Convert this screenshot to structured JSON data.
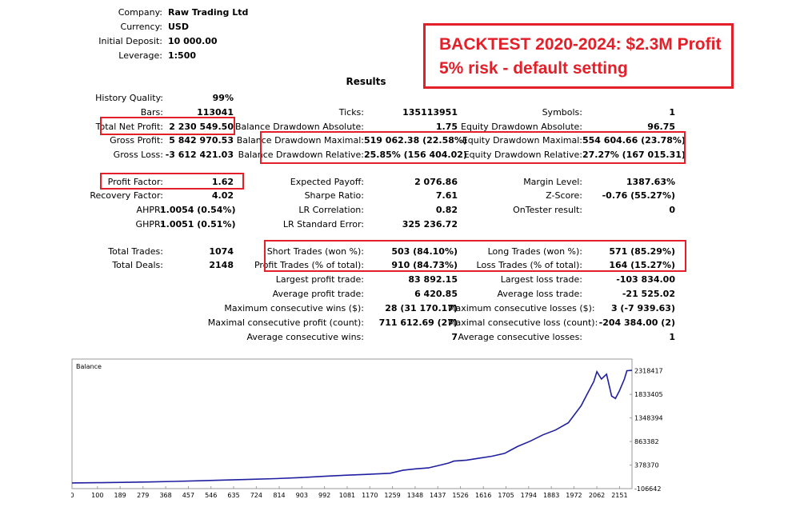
{
  "header": {
    "rows": [
      {
        "label": "Company:",
        "value": "Raw Trading Ltd"
      },
      {
        "label": "Currency:",
        "value": "USD"
      },
      {
        "label": "Initial Deposit:",
        "value": "10 000.00"
      },
      {
        "label": "Leverage:",
        "value": "1:500"
      }
    ]
  },
  "banner": {
    "line1": "BACKTEST 2020-2024: $2.3M Profit",
    "line2": "5% risk - default setting"
  },
  "results_title": "Results",
  "col1": {
    "history_quality": {
      "label": "History Quality:",
      "value": "99%"
    },
    "bars": {
      "label": "Bars:",
      "value": "113041"
    },
    "total_net_profit": {
      "label": "Total Net Profit:",
      "value": "2 230 549.50"
    },
    "gross_profit": {
      "label": "Gross Profit:",
      "value": "5 842 970.53"
    },
    "gross_loss": {
      "label": "Gross Loss:",
      "value": "-3 612 421.03"
    },
    "profit_factor": {
      "label": "Profit Factor:",
      "value": "1.62"
    },
    "recovery_factor": {
      "label": "Recovery Factor:",
      "value": "4.02"
    },
    "ahpr": {
      "label": "AHPR:",
      "value": "1.0054 (0.54%)"
    },
    "ghpr": {
      "label": "GHPR:",
      "value": "1.0051 (0.51%)"
    },
    "total_trades": {
      "label": "Total Trades:",
      "value": "1074"
    },
    "total_deals": {
      "label": "Total Deals:",
      "value": "2148"
    }
  },
  "col2": {
    "ticks": {
      "label": "Ticks:",
      "value": "135113951"
    },
    "bal_dd_abs": {
      "label": "Balance Drawdown Absolute:",
      "value": "1.75"
    },
    "bal_dd_max": {
      "label": "Balance Drawdown Maximal:",
      "value": "519 062.38 (22.58%)"
    },
    "bal_dd_rel": {
      "label": "Balance Drawdown Relative:",
      "value": "25.85% (156 404.02)"
    },
    "expected_payoff": {
      "label": "Expected Payoff:",
      "value": "2 076.86"
    },
    "sharpe": {
      "label": "Sharpe Ratio:",
      "value": "7.61"
    },
    "lr_corr": {
      "label": "LR Correlation:",
      "value": "0.82"
    },
    "lr_std": {
      "label": "LR Standard Error:",
      "value": "325 236.72"
    },
    "short_trades": {
      "label": "Short Trades (won %):",
      "value": "503 (84.10%)"
    },
    "profit_trades": {
      "label": "Profit Trades (% of total):",
      "value": "910 (84.73%)"
    },
    "largest_profit": {
      "label": "Largest profit trade:",
      "value": "83 892.15"
    },
    "avg_profit": {
      "label": "Average profit trade:",
      "value": "6 420.85"
    },
    "max_consec_wins": {
      "label": "Maximum consecutive wins ($):",
      "value": "28 (31 170.17)"
    },
    "maximal_consec_profit": {
      "label": "Maximal consecutive profit (count):",
      "value": "711 612.69 (27)"
    },
    "avg_consec_wins": {
      "label": "Average consecutive wins:",
      "value": "7"
    }
  },
  "col3": {
    "symbols": {
      "label": "Symbols:",
      "value": "1"
    },
    "eq_dd_abs": {
      "label": "Equity Drawdown Absolute:",
      "value": "96.75"
    },
    "eq_dd_max": {
      "label": "Equity Drawdown Maximal:",
      "value": "554 604.66 (23.78%)"
    },
    "eq_dd_rel": {
      "label": "Equity Drawdown Relative:",
      "value": "27.27% (167 015.31)"
    },
    "margin_level": {
      "label": "Margin Level:",
      "value": "1387.63%"
    },
    "z_score": {
      "label": "Z-Score:",
      "value": "-0.76 (55.27%)"
    },
    "ontester": {
      "label": "OnTester result:",
      "value": "0"
    },
    "long_trades": {
      "label": "Long Trades (won %):",
      "value": "571 (85.29%)"
    },
    "loss_trades": {
      "label": "Loss Trades (% of total):",
      "value": "164 (15.27%)"
    },
    "largest_loss": {
      "label": "Largest loss trade:",
      "value": "-103 834.00"
    },
    "avg_loss": {
      "label": "Average loss trade:",
      "value": "-21 525.02"
    },
    "max_consec_losses": {
      "label": "Maximum consecutive losses ($):",
      "value": "3 (-7 939.63)"
    },
    "maximal_consec_loss": {
      "label": "Maximal consecutive loss (count):",
      "value": "-204 384.00 (2)"
    },
    "avg_consec_losses": {
      "label": "Average consecutive losses:",
      "value": "1"
    }
  },
  "colors": {
    "highlight": "#e3202a",
    "series": "#1f1fa0"
  },
  "chart_data": {
    "type": "line",
    "title": "Balance",
    "x_ticks": [
      "0",
      "100",
      "189",
      "279",
      "368",
      "457",
      "546",
      "635",
      "724",
      "814",
      "903",
      "992",
      "1081",
      "1170",
      "1259",
      "1348",
      "1437",
      "1526",
      "1616",
      "1705",
      "1794",
      "1883",
      "1972",
      "2062",
      "2151"
    ],
    "y_ticks": [
      "2318417",
      "1833405",
      "1348394",
      "863382",
      "378370",
      "-106642"
    ],
    "xlim": [
      0,
      2200
    ],
    "ylim": [
      -106642,
      2561000
    ],
    "series": [
      {
        "x": [
          0,
          100,
          200,
          300,
          400,
          500,
          600,
          700,
          800,
          900,
          1000,
          1080,
          1150,
          1250,
          1300,
          1350,
          1400,
          1450,
          1480,
          1500,
          1550,
          1600,
          1650,
          1700,
          1750,
          1800,
          1850,
          1900,
          1950,
          2000,
          2020,
          2050,
          2062,
          2080,
          2100,
          2120,
          2135,
          2150,
          2170,
          2180,
          2200
        ],
        "y": [
          10000,
          15000,
          22000,
          30000,
          42000,
          55000,
          70000,
          85000,
          100000,
          120000,
          150000,
          170000,
          185000,
          210000,
          270000,
          300000,
          320000,
          380000,
          420000,
          460000,
          480000,
          520000,
          560000,
          620000,
          760000,
          870000,
          1000000,
          1100000,
          1250000,
          1600000,
          1800000,
          2100000,
          2300000,
          2150000,
          2250000,
          1800000,
          1750000,
          1900000,
          2150000,
          2320000,
          2330000
        ]
      }
    ]
  }
}
